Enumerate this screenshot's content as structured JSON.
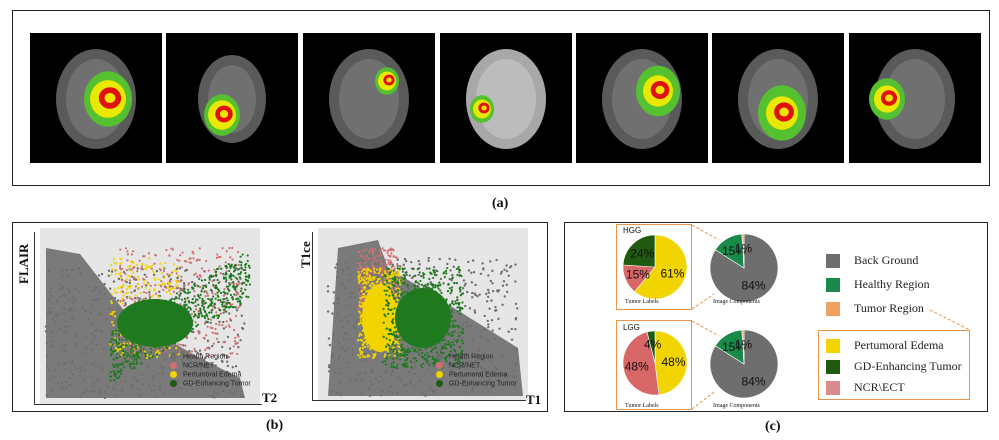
{
  "panel_a": {
    "caption": "(a)",
    "scans": [
      {
        "id": "scan-1"
      },
      {
        "id": "scan-2"
      },
      {
        "id": "scan-3"
      },
      {
        "id": "scan-4"
      },
      {
        "id": "scan-5"
      },
      {
        "id": "scan-6"
      },
      {
        "id": "scan-7"
      }
    ]
  },
  "panel_b": {
    "caption": "(b)",
    "plot1": {
      "ylabel": "FLAIR",
      "xlabel": "T2"
    },
    "plot2": {
      "ylabel": "T1ce",
      "xlabel": "T1"
    },
    "legend": [
      "Health Region",
      "NCR/NET",
      "Pertumoral Edema",
      "GD-Enhancing Tumor"
    ]
  },
  "panel_c": {
    "caption": "(c)",
    "hgg": {
      "title": "HGG",
      "label": "Tumor Labels"
    },
    "lgg": {
      "title": "LGG",
      "label": "Tumor Labels"
    },
    "components_label": "Image Components",
    "legend_top": [
      "Back Ground",
      "Healthy Region",
      "Tumor Region"
    ],
    "legend_bottom": [
      "Pertumoral Edema",
      "GD-Enhancing Tumor",
      "NCR\\ECT"
    ]
  },
  "colors": {
    "background": "#6e6e6e",
    "healthy": "#1a8a4a",
    "tumor_region": "#f0a060",
    "edema": "#f2d400",
    "enhancing": "#1f5a10",
    "ncr": "#d07070"
  },
  "chart_data": [
    {
      "type": "pie",
      "title": "HGG",
      "label": "Tumor Labels",
      "categories": [
        "Pertumoral Edema",
        "NCR\\ECT",
        "GD-Enhancing Tumor"
      ],
      "values": [
        61,
        15,
        24
      ],
      "labels": [
        "61%",
        "15%",
        "24%"
      ]
    },
    {
      "type": "pie",
      "label": "Image Components",
      "categories": [
        "Back Ground",
        "Healthy Region",
        "Tumor Region"
      ],
      "values": [
        84,
        15,
        1
      ],
      "labels": [
        "84%",
        "15%",
        "1%"
      ]
    },
    {
      "type": "pie",
      "title": "LGG",
      "label": "Tumor Labels",
      "categories": [
        "Pertumoral Edema",
        "NCR\\ECT",
        "GD-Enhancing Tumor"
      ],
      "values": [
        48,
        48,
        4
      ],
      "labels": [
        "48%",
        "48%",
        "4%"
      ]
    },
    {
      "type": "pie",
      "label": "Image Components",
      "categories": [
        "Back Ground",
        "Healthy Region",
        "Tumor Region"
      ],
      "values": [
        84,
        15,
        1
      ],
      "labels": [
        "84%",
        "15%",
        "1%"
      ]
    },
    {
      "type": "scatter",
      "xlabel": "T2",
      "ylabel": "FLAIR",
      "series": [
        {
          "name": "Health Region"
        },
        {
          "name": "NCR/NET"
        },
        {
          "name": "Pertumoral Edema"
        },
        {
          "name": "GD-Enhancing Tumor"
        }
      ]
    },
    {
      "type": "scatter",
      "xlabel": "T1",
      "ylabel": "T1ce",
      "series": [
        {
          "name": "Health Region"
        },
        {
          "name": "NCR/NET"
        },
        {
          "name": "Pertumoral Edema"
        },
        {
          "name": "GD-Enhancing Tumor"
        }
      ]
    }
  ]
}
